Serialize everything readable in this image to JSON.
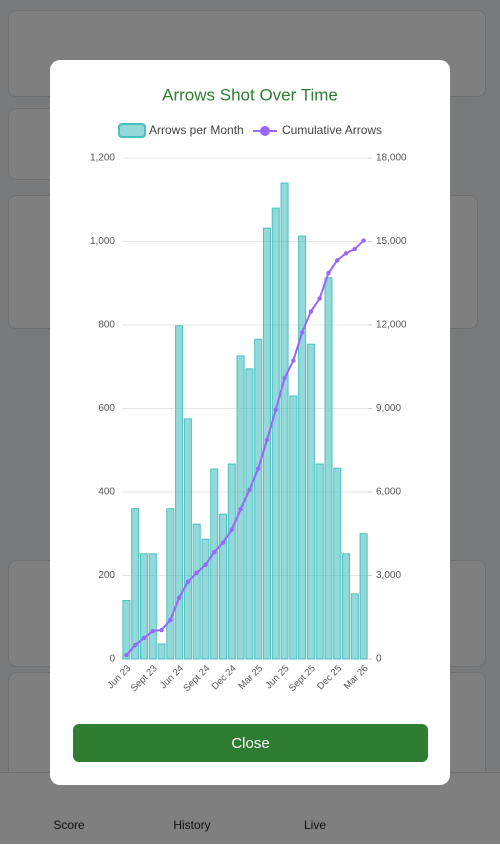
{
  "chart_data": {
    "type": "bar_line",
    "title": "Arrows Shot Over Time",
    "categories": [
      "Jun 23",
      null,
      null,
      "Sept 23",
      null,
      null,
      "Jun 24",
      null,
      null,
      "Sept 24",
      null,
      null,
      "Dec 24",
      null,
      null,
      "Mar 25",
      null,
      null,
      "Jun 25",
      null,
      null,
      "Sept 25",
      null,
      null,
      "Dec 25",
      null,
      null,
      "Mar 26"
    ],
    "series": [
      {
        "name": "Arrows per Month",
        "color": "#4bc0c0",
        "values": [
          140,
          360,
          252,
          252,
          36,
          360,
          798,
          575,
          323,
          287,
          455,
          347,
          467,
          726,
          695,
          766,
          1032,
          1080,
          1140,
          630,
          1013,
          754,
          467,
          913,
          457,
          252,
          156,
          300
        ]
      },
      {
        "name": "Cumulative Arrows",
        "color": "#9966ff",
        "axis": "y2",
        "values": [
          140,
          500,
          752,
          1004,
          1040,
          1400,
          2198,
          2773,
          3096,
          3383,
          3838,
          4185,
          4652,
          5378,
          6073,
          6839,
          7871,
          8951,
          10091,
          10721,
          11734,
          12488,
          12955,
          13868,
          14325,
          14577,
          14733,
          15033
        ]
      }
    ],
    "ylim": [
      0,
      1200
    ],
    "yticks": [
      0,
      200,
      400,
      600,
      800,
      {
        "value": 1000,
        "label": "1,000"
      },
      {
        "value": 1200,
        "label": "1,200"
      }
    ],
    "y2lim": [
      0,
      18000
    ],
    "y2ticks": [
      0,
      {
        "value": 3000,
        "label": "3,000"
      },
      {
        "value": 6000,
        "label": "6,000"
      },
      {
        "value": 9000,
        "label": "9,000"
      },
      {
        "value": 12000,
        "label": "12,000"
      },
      {
        "value": 15000,
        "label": "15,000"
      },
      {
        "value": 18000,
        "label": "18,000"
      }
    ],
    "grid": true,
    "legend": "top"
  },
  "close_button": "Close",
  "nav": [
    "Score",
    "History",
    "Live"
  ]
}
